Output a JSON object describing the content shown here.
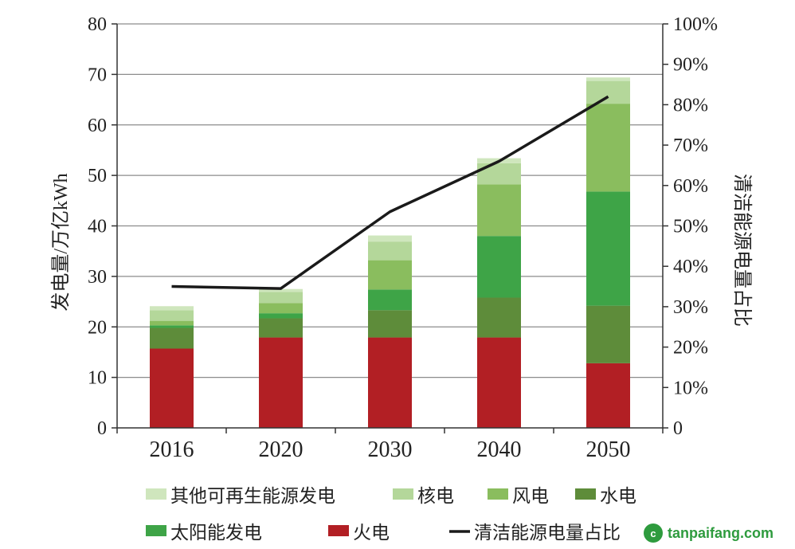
{
  "chart_data": {
    "type": "bar",
    "stacked": true,
    "categories": [
      "2016",
      "2020",
      "2030",
      "2040",
      "2050"
    ],
    "ylabel": "发电量/万亿kWh",
    "ylabel_right": "清洁能源电量占比",
    "ylim": [
      0,
      80
    ],
    "ylim_right": [
      0,
      1
    ],
    "yticks": [
      "0",
      "10",
      "20",
      "30",
      "40",
      "50",
      "60",
      "70",
      "80"
    ],
    "yticks_right": [
      "0",
      "10%",
      "20%",
      "30%",
      "40%",
      "50%",
      "60%",
      "70%",
      "80%",
      "90%",
      "100%"
    ],
    "grid": true,
    "series": [
      {
        "name": "火电",
        "color": "#b21f24",
        "values": [
          15.7,
          17.9,
          17.9,
          17.9,
          12.8
        ]
      },
      {
        "name": "水电",
        "color": "#5e8c3a",
        "values": [
          4.1,
          3.8,
          5.4,
          7.9,
          11.4
        ]
      },
      {
        "name": "太阳能发电",
        "color": "#3ea447",
        "values": [
          0.5,
          1.0,
          4.1,
          12.2,
          22.6
        ]
      },
      {
        "name": "风电",
        "color": "#8abd5e",
        "values": [
          0.9,
          2.0,
          5.8,
          10.2,
          17.4
        ]
      },
      {
        "name": "核电",
        "color": "#b4d79a",
        "values": [
          2.1,
          2.2,
          3.7,
          4.2,
          4.5
        ]
      },
      {
        "name": "其他可再生能源发电",
        "color": "#cfe6bd",
        "values": [
          0.8,
          0.6,
          1.2,
          1.0,
          0.7
        ]
      }
    ],
    "line": {
      "name": "清洁能源电量占比",
      "color": "#1a1a1a",
      "values": [
        0.35,
        0.345,
        0.535,
        0.66,
        0.82
      ]
    },
    "legend_rows": [
      [
        "其他可再生能源发电",
        "核电",
        "风电",
        "水电"
      ],
      [
        "太阳能发电",
        "火电",
        "清洁能源电量占比"
      ]
    ]
  },
  "watermark": {
    "icon": "tan",
    "text": "tanpaifang.com"
  }
}
